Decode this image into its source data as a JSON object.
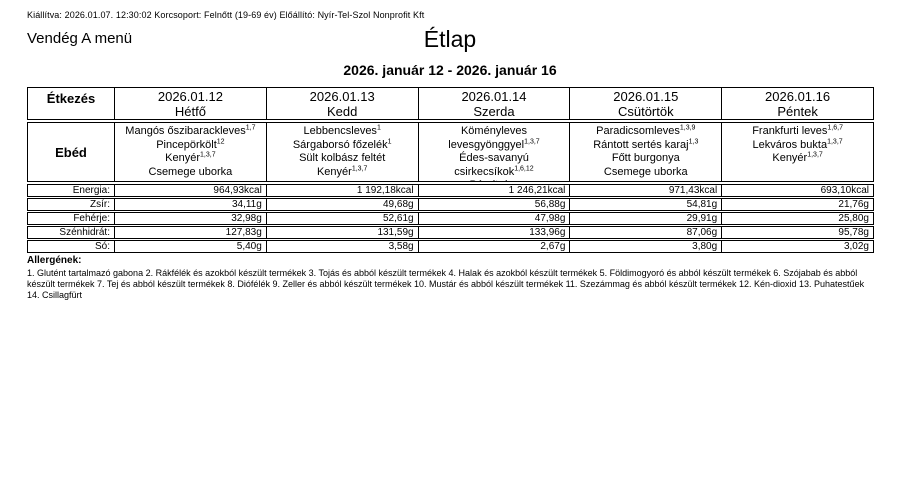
{
  "meta_line": "Kiállítva: 2026.01.07. 12:30:02 Korcsoport: Felnőtt (19-69 év) Előállító: Nyír-Tel-Szol Nonprofit Kft",
  "menu_name": "Vendég A menü",
  "title": "Étlap",
  "date_range": "2026. január 12 - 2026. január 16",
  "table": {
    "meal_header": "Étkezés",
    "meal_label": "Ebéd",
    "days": [
      {
        "date": "2026.01.12",
        "day": "Hétfő",
        "items": [
          {
            "text": "Mangós őszibarackleves",
            "sup": "1,7"
          },
          {
            "text": "Pincepörkölt",
            "sup": "12"
          },
          {
            "text": "Kenyér",
            "sup": "1,3,7"
          },
          {
            "text": "Csemege uborka",
            "sup": ""
          }
        ]
      },
      {
        "date": "2026.01.13",
        "day": "Kedd",
        "items": [
          {
            "text": "Lebbencsleves",
            "sup": "1"
          },
          {
            "text": "Sárgaborsó főzelék",
            "sup": "1"
          },
          {
            "text": "Sült kolbász feltét",
            "sup": ""
          },
          {
            "text": "Kenyér",
            "sup": "1,3,7"
          }
        ]
      },
      {
        "date": "2026.01.14",
        "day": "Szerda",
        "items": [
          {
            "text": "Köményleves levesgyönggyel",
            "sup": "1,3,7"
          },
          {
            "text": "Édes-savanyú csirkecsíkok",
            "sup": "1,6,12"
          },
          {
            "text": "Párolt rizs",
            "sup": ""
          }
        ]
      },
      {
        "date": "2026.01.15",
        "day": "Csütörtök",
        "items": [
          {
            "text": "Paradicsomleves",
            "sup": "1,3,9"
          },
          {
            "text": "Rántott sertés karaj",
            "sup": "1,3"
          },
          {
            "text": "Főtt burgonya",
            "sup": ""
          },
          {
            "text": "Csemege uborka",
            "sup": ""
          }
        ]
      },
      {
        "date": "2026.01.16",
        "day": "Péntek",
        "items": [
          {
            "text": "Frankfurti leves",
            "sup": "1,6,7"
          },
          {
            "text": "Lekváros bukta",
            "sup": "1,3,7"
          },
          {
            "text": "Kenyér",
            "sup": "1,3,7"
          }
        ]
      }
    ],
    "nutrition": [
      {
        "label": "Energia:",
        "values": [
          "964,93kcal",
          "1 192,18kcal",
          "1 246,21kcal",
          "971,43kcal",
          "693,10kcal"
        ]
      },
      {
        "label": "Zsír:",
        "values": [
          "34,11g",
          "49,68g",
          "56,88g",
          "54,81g",
          "21,76g"
        ]
      },
      {
        "label": "Fehérje:",
        "values": [
          "32,98g",
          "52,61g",
          "47,98g",
          "29,91g",
          "25,80g"
        ]
      },
      {
        "label": "Szénhidrát:",
        "values": [
          "127,83g",
          "131,59g",
          "133,96g",
          "87,06g",
          "95,78g"
        ]
      },
      {
        "label": "Só:",
        "values": [
          "5,40g",
          "3,58g",
          "2,67g",
          "3,80g",
          "3,02g"
        ]
      }
    ]
  },
  "allergens": {
    "title": "Allergének:",
    "text": "1. Glutént tartalmazó gabona 2. Rákfélék és azokból készült termékek 3. Tojás és abból készült termékek 4. Halak és azokból készült termékek 5. Földimogyoró és abból készült termékek 6. Szójabab és abból készült termékek 7. Tej és abból készült termékek 8. Diófélék 9. Zeller és abból készült termékek 10. Mustár és abból készült termékek 11. Szezámmag és abból készült termékek 12. Kén-dioxid 13. Puhatestűek 14. Csillagfürt"
  }
}
